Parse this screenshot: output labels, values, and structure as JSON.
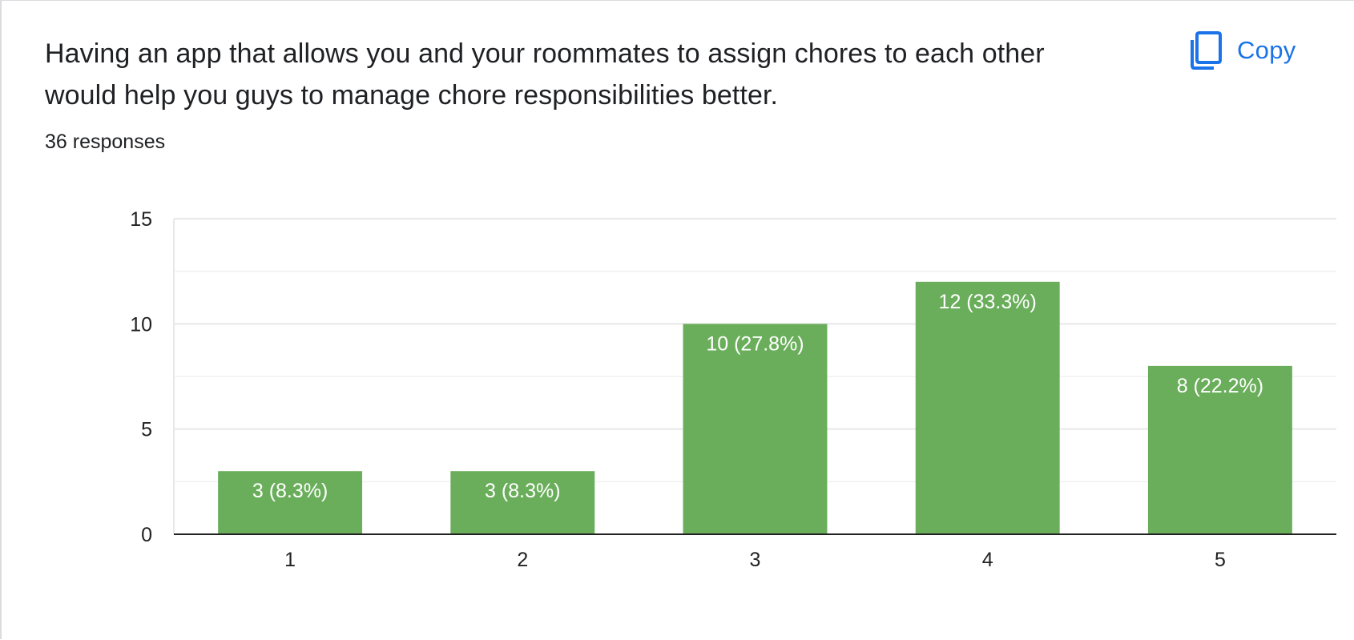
{
  "question": {
    "title": "Having an app that allows you and your roommates to assign chores to each other would help you guys to manage chore responsibilities better.",
    "responses": "36 responses"
  },
  "toolbar": {
    "copy_label": "Copy",
    "copy_icon": "copy-icon"
  },
  "colors": {
    "bar": "#6aae5b",
    "accent": "#1a73e8",
    "gridline": "#e8e8e8",
    "axis": "#222222"
  },
  "chart_data": {
    "type": "bar",
    "title": "",
    "xlabel": "",
    "ylabel": "",
    "categories": [
      "1",
      "2",
      "3",
      "4",
      "5"
    ],
    "values": [
      3,
      3,
      10,
      12,
      8
    ],
    "data_labels": [
      "3 (8.3%)",
      "3 (8.3%)",
      "10 (27.8%)",
      "12 (33.3%)",
      "8 (22.2%)"
    ],
    "ylim": [
      0,
      15
    ],
    "yticks": [
      "0",
      "5",
      "10",
      "15"
    ],
    "minor_gridlines": true,
    "legend": "none"
  }
}
